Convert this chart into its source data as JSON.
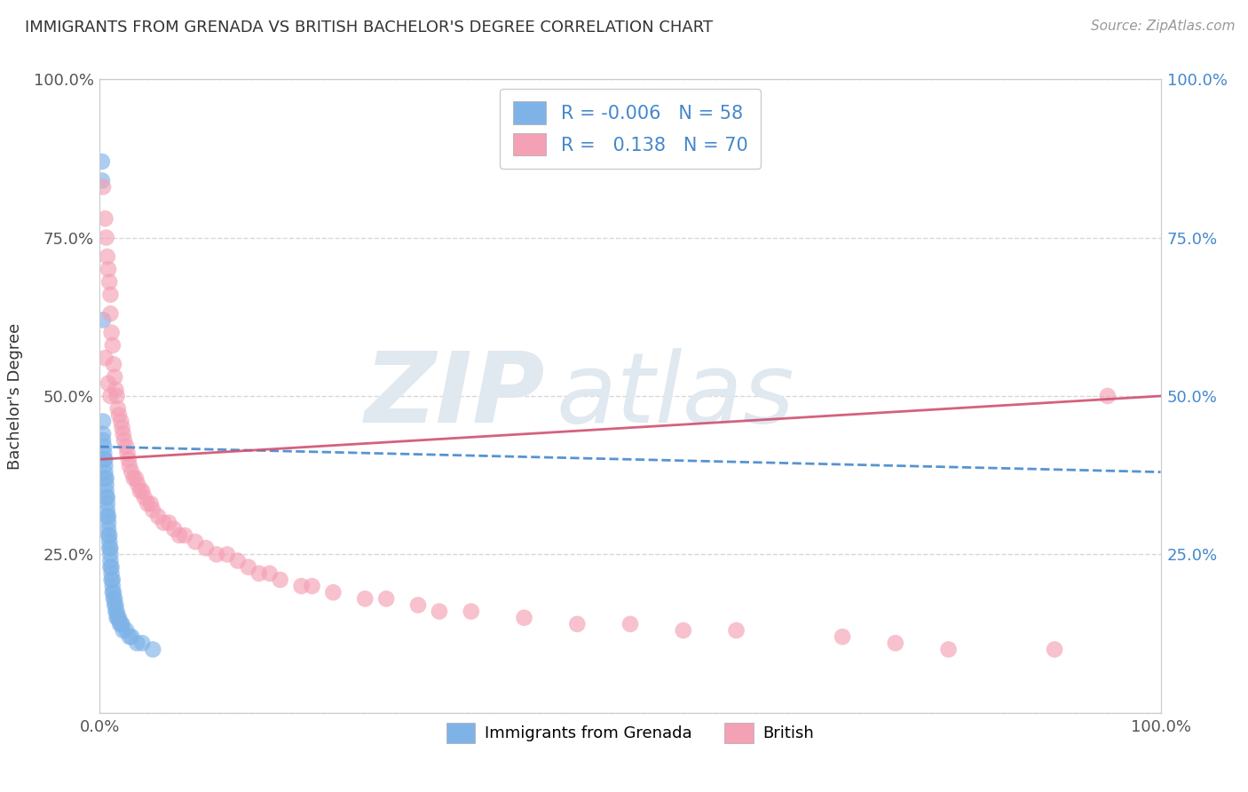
{
  "title": "IMMIGRANTS FROM GRENADA VS BRITISH BACHELOR'S DEGREE CORRELATION CHART",
  "source": "Source: ZipAtlas.com",
  "ylabel": "Bachelor's Degree",
  "R1": "-0.006",
  "N1": "58",
  "R2": "0.138",
  "N2": "70",
  "color1": "#7fb3e8",
  "color2": "#f4a0b5",
  "line_color1": "#4488cc",
  "line_color2": "#d05070",
  "legend_label1": "Immigrants from Grenada",
  "legend_label2": "British",
  "background_color": "#ffffff",
  "grid_color": "#d8d8d8",
  "watermark_color": "#e0e8f0",
  "title_color": "#333333",
  "source_color": "#999999",
  "tick_color": "#555555",
  "ylabel_color": "#333333",
  "xlim": [
    0,
    1.0
  ],
  "ylim": [
    0,
    1.0
  ],
  "blue_line_x": [
    0.0,
    1.0
  ],
  "blue_line_y": [
    0.42,
    0.38
  ],
  "pink_line_x": [
    0.0,
    1.0
  ],
  "pink_line_y": [
    0.4,
    0.5
  ],
  "blue_x": [
    0.002,
    0.002,
    0.003,
    0.003,
    0.003,
    0.004,
    0.004,
    0.004,
    0.005,
    0.005,
    0.005,
    0.005,
    0.006,
    0.006,
    0.006,
    0.006,
    0.007,
    0.007,
    0.007,
    0.007,
    0.008,
    0.008,
    0.008,
    0.008,
    0.009,
    0.009,
    0.009,
    0.01,
    0.01,
    0.01,
    0.01,
    0.011,
    0.011,
    0.011,
    0.012,
    0.012,
    0.012,
    0.013,
    0.013,
    0.014,
    0.014,
    0.015,
    0.015,
    0.016,
    0.016,
    0.017,
    0.018,
    0.019,
    0.02,
    0.021,
    0.022,
    0.025,
    0.028,
    0.03,
    0.035,
    0.04,
    0.05,
    0.003
  ],
  "blue_y": [
    0.87,
    0.84,
    0.46,
    0.44,
    0.43,
    0.42,
    0.41,
    0.4,
    0.4,
    0.39,
    0.38,
    0.37,
    0.37,
    0.36,
    0.35,
    0.34,
    0.34,
    0.33,
    0.32,
    0.31,
    0.31,
    0.3,
    0.29,
    0.28,
    0.28,
    0.27,
    0.26,
    0.26,
    0.25,
    0.24,
    0.23,
    0.23,
    0.22,
    0.21,
    0.21,
    0.2,
    0.19,
    0.19,
    0.18,
    0.18,
    0.17,
    0.17,
    0.16,
    0.16,
    0.15,
    0.15,
    0.15,
    0.14,
    0.14,
    0.14,
    0.13,
    0.13,
    0.12,
    0.12,
    0.11,
    0.11,
    0.1,
    0.62
  ],
  "pink_x": [
    0.003,
    0.005,
    0.006,
    0.007,
    0.008,
    0.009,
    0.01,
    0.01,
    0.011,
    0.012,
    0.013,
    0.014,
    0.015,
    0.016,
    0.017,
    0.018,
    0.02,
    0.021,
    0.022,
    0.023,
    0.025,
    0.026,
    0.027,
    0.028,
    0.03,
    0.032,
    0.034,
    0.036,
    0.038,
    0.04,
    0.042,
    0.045,
    0.048,
    0.05,
    0.055,
    0.06,
    0.065,
    0.07,
    0.075,
    0.08,
    0.09,
    0.1,
    0.11,
    0.12,
    0.13,
    0.14,
    0.15,
    0.16,
    0.17,
    0.19,
    0.2,
    0.22,
    0.25,
    0.27,
    0.3,
    0.32,
    0.35,
    0.4,
    0.45,
    0.5,
    0.55,
    0.6,
    0.7,
    0.75,
    0.8,
    0.9,
    0.005,
    0.008,
    0.01,
    0.95
  ],
  "pink_y": [
    0.83,
    0.78,
    0.75,
    0.72,
    0.7,
    0.68,
    0.66,
    0.63,
    0.6,
    0.58,
    0.55,
    0.53,
    0.51,
    0.5,
    0.48,
    0.47,
    0.46,
    0.45,
    0.44,
    0.43,
    0.42,
    0.41,
    0.4,
    0.39,
    0.38,
    0.37,
    0.37,
    0.36,
    0.35,
    0.35,
    0.34,
    0.33,
    0.33,
    0.32,
    0.31,
    0.3,
    0.3,
    0.29,
    0.28,
    0.28,
    0.27,
    0.26,
    0.25,
    0.25,
    0.24,
    0.23,
    0.22,
    0.22,
    0.21,
    0.2,
    0.2,
    0.19,
    0.18,
    0.18,
    0.17,
    0.16,
    0.16,
    0.15,
    0.14,
    0.14,
    0.13,
    0.13,
    0.12,
    0.11,
    0.1,
    0.1,
    0.56,
    0.52,
    0.5,
    0.5
  ]
}
